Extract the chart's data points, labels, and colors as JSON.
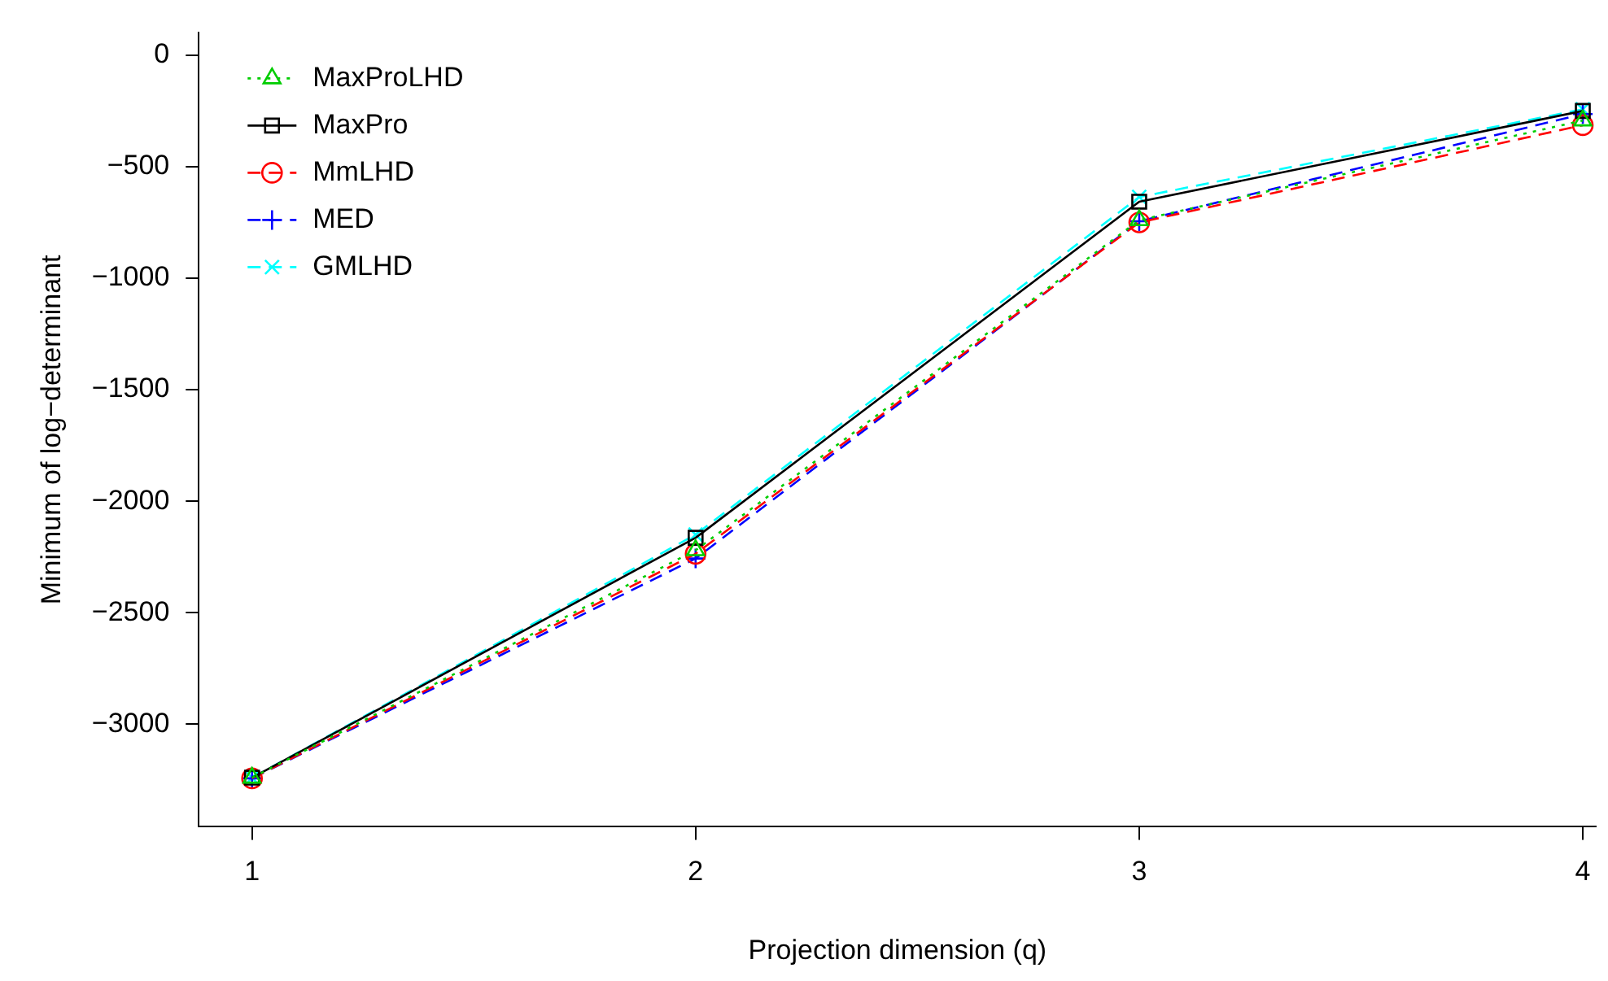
{
  "chart_data": {
    "type": "line",
    "xlabel": "Projection dimension (q)",
    "ylabel": "Minimum of log−determinant",
    "x": [
      1,
      2,
      3,
      4
    ],
    "xlim": [
      0.88,
      4.03
    ],
    "xticks": [
      1,
      2,
      3,
      4
    ],
    "ylim": [
      -3460,
      100
    ],
    "yticks": [
      0,
      {
        "value": -500,
        "label": "−500"
      },
      {
        "value": -1000,
        "label": "−1000"
      },
      {
        "value": -1500,
        "label": "−1500"
      },
      {
        "value": -2000,
        "label": "−2000"
      },
      {
        "value": -2500,
        "label": "−2500"
      },
      {
        "value": -3000,
        "label": "−3000"
      }
    ],
    "legend": "top left",
    "series": [
      {
        "name": "MaxProLHD",
        "color": "#00cd00",
        "marker": "triangle",
        "line_style": "dotted",
        "values": [
          -3240,
          -2220,
          -740,
          -293
        ]
      },
      {
        "name": "MaxPro",
        "color": "#000000",
        "marker": "square",
        "line_style": "solid",
        "values": [
          -3240,
          -2164,
          -657,
          -250
        ]
      },
      {
        "name": "MmLHD",
        "color": "#ff0000",
        "marker": "circle",
        "line_style": "dashed",
        "values": [
          -3243,
          -2236,
          -750,
          -314
        ]
      },
      {
        "name": "MED",
        "color": "#0000ff",
        "marker": "cross",
        "line_style": "dashed",
        "values": [
          -3243,
          -2257,
          -745,
          -264
        ]
      },
      {
        "name": "GMLHD",
        "color": "#00ffff",
        "marker": "x",
        "line_style": "dashed",
        "values": [
          -3240,
          -2150,
          -636,
          -243
        ]
      }
    ]
  }
}
